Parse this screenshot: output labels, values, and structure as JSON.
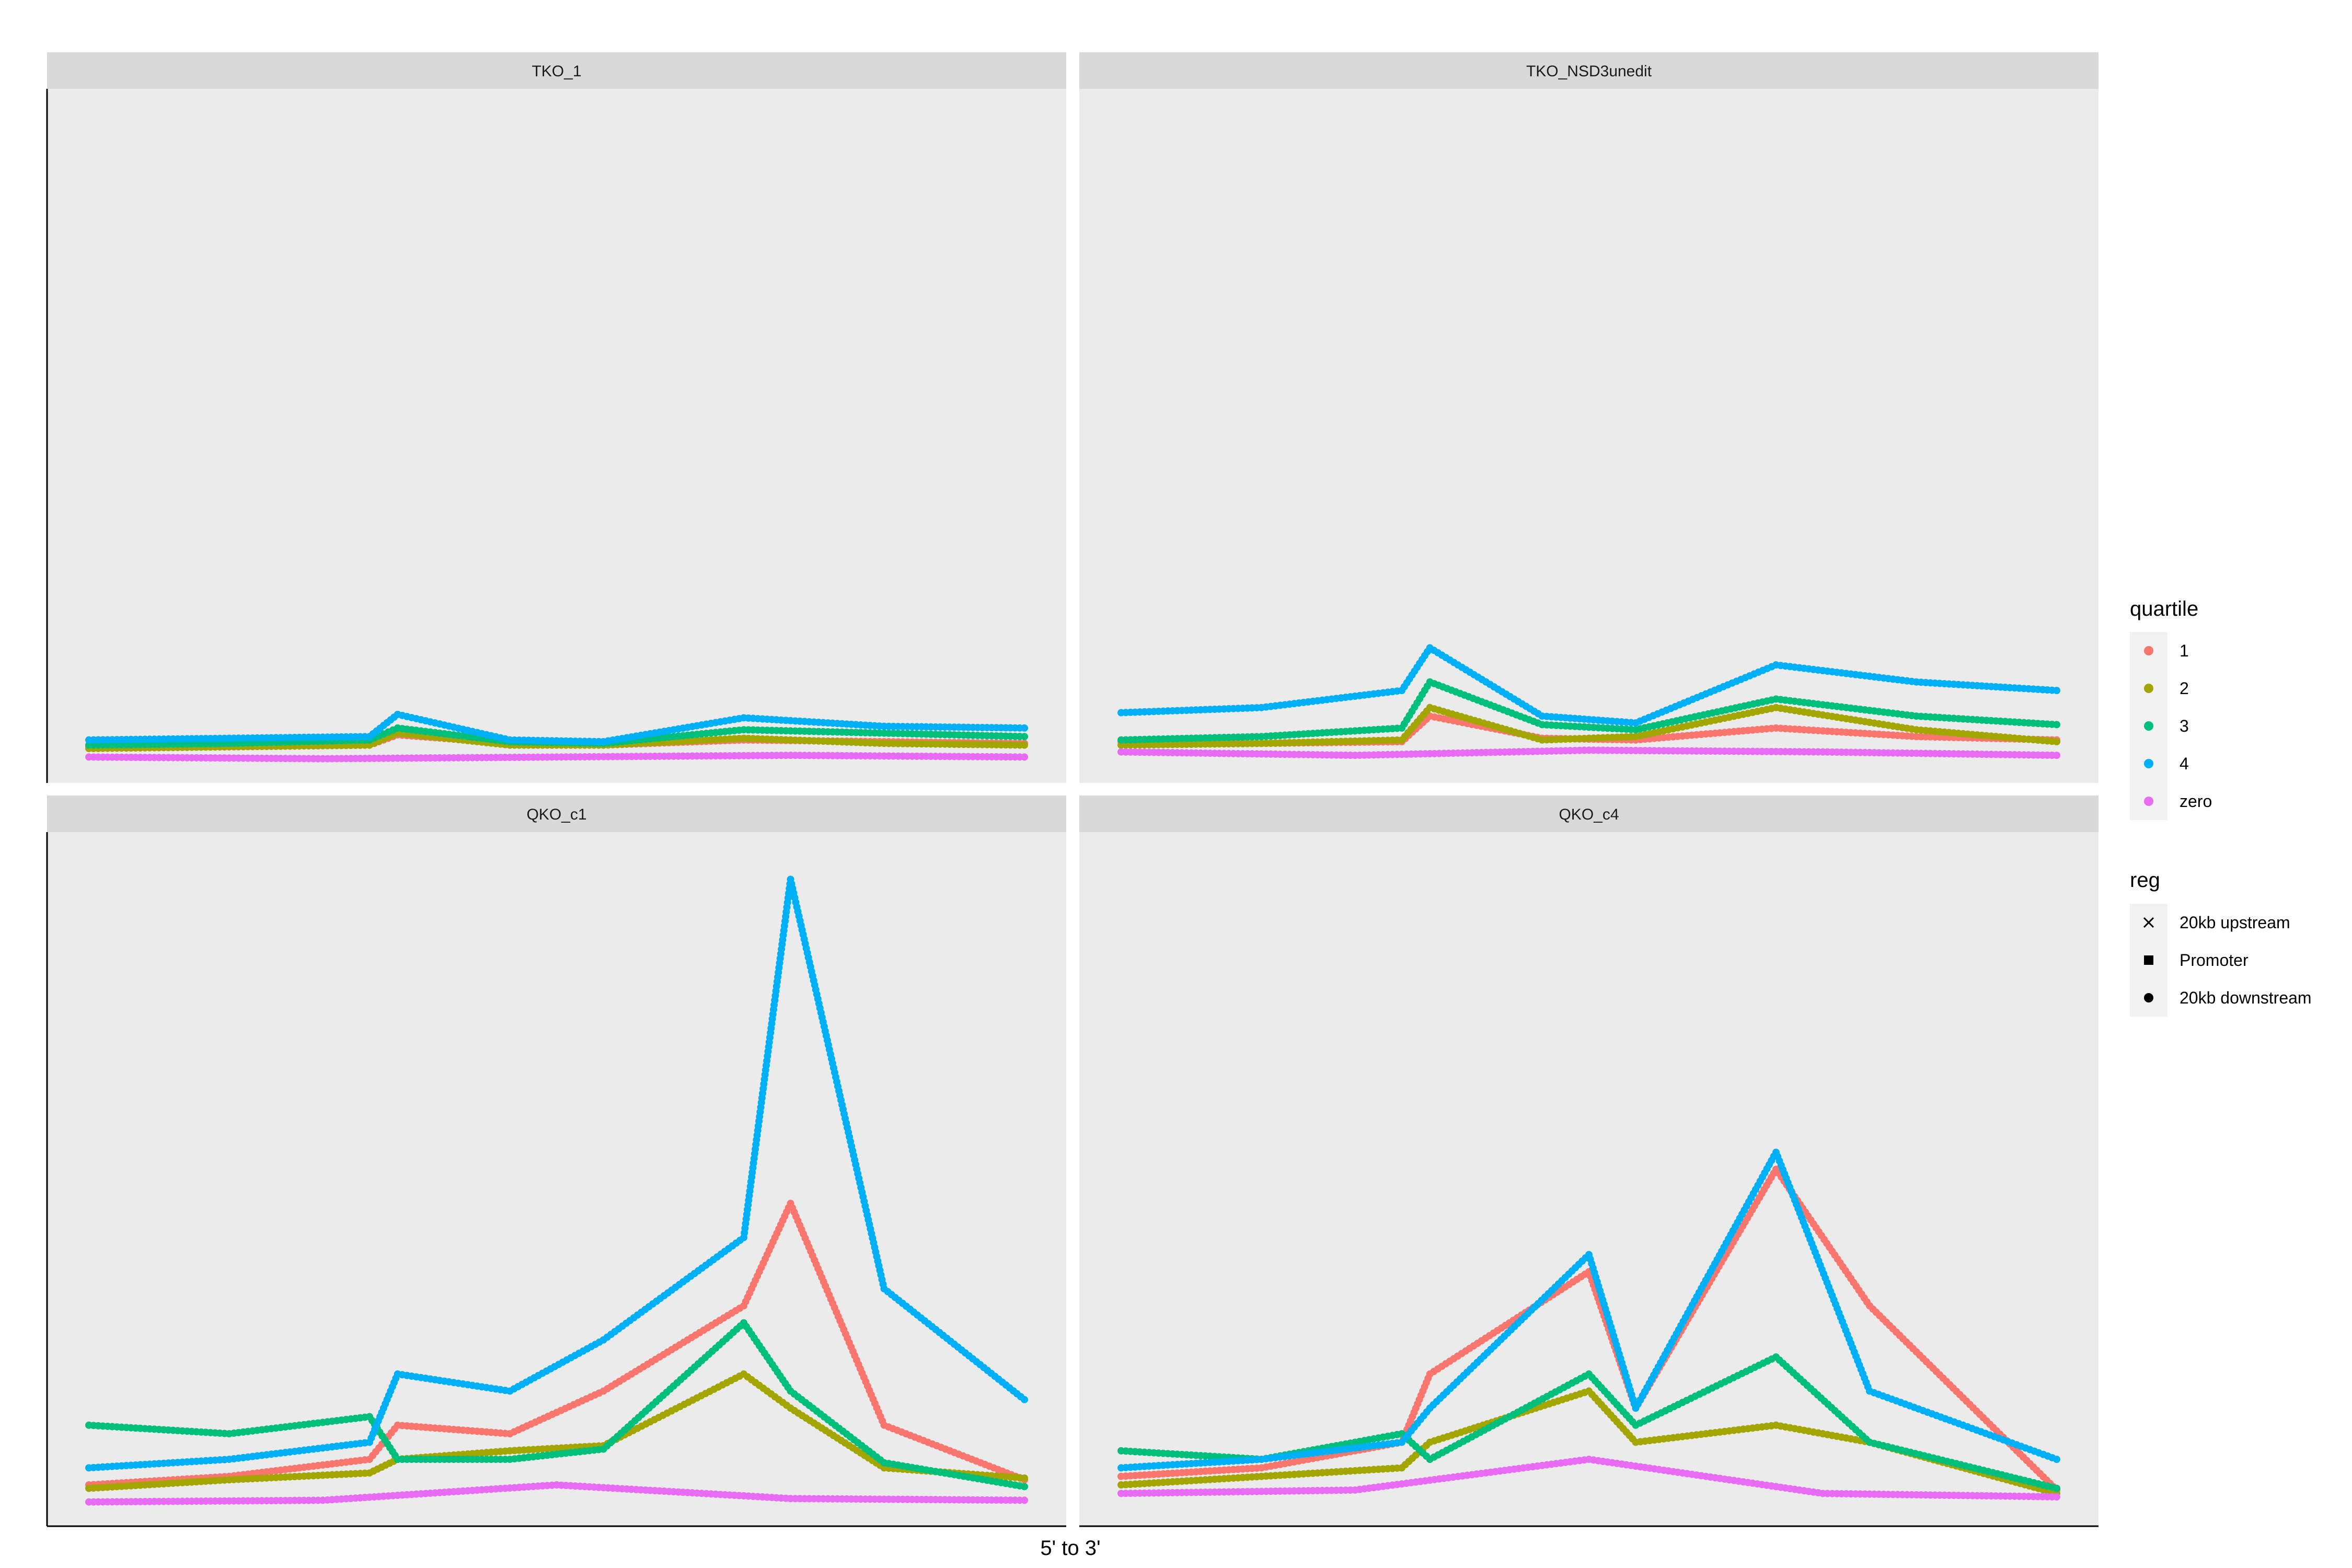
{
  "chart_data": {
    "type": "scatter",
    "xlabel": "5' to 3'",
    "ylabel": "",
    "x_ticks_shown": false,
    "y_ticks_shown": false,
    "grid": false,
    "shared_scales": true,
    "legend_position": "right",
    "x_regions": [
      "20kb upstream",
      "Promoter",
      "20kb downstream"
    ],
    "facets": [
      {
        "name": "TKO_1",
        "series": [
          {
            "name": "1",
            "shape": "Promoter",
            "values": [
              [
                0,
                1.2
              ],
              [
                0.15,
                1.2
              ],
              [
                0.3,
                1.3
              ],
              [
                0.33,
                1.9
              ],
              [
                0.45,
                1.4
              ],
              [
                0.55,
                1.3
              ],
              [
                0.7,
                1.6
              ],
              [
                0.85,
                1.5
              ],
              [
                1,
                1.4
              ]
            ]
          },
          {
            "name": "2",
            "shape": "Promoter",
            "values": [
              [
                0,
                1.1
              ],
              [
                0.15,
                1.2
              ],
              [
                0.3,
                1.3
              ],
              [
                0.33,
                2.0
              ],
              [
                0.45,
                1.3
              ],
              [
                0.55,
                1.3
              ],
              [
                0.7,
                1.7
              ],
              [
                0.85,
                1.4
              ],
              [
                1,
                1.3
              ]
            ]
          },
          {
            "name": "3",
            "shape": "Promoter",
            "values": [
              [
                0,
                1.3
              ],
              [
                0.15,
                1.4
              ],
              [
                0.3,
                1.6
              ],
              [
                0.33,
                2.3
              ],
              [
                0.45,
                1.5
              ],
              [
                0.55,
                1.4
              ],
              [
                0.7,
                2.2
              ],
              [
                0.85,
                2.0
              ],
              [
                1,
                1.8
              ]
            ]
          },
          {
            "name": "4",
            "shape": "Promoter",
            "values": [
              [
                0,
                1.6
              ],
              [
                0.15,
                1.7
              ],
              [
                0.3,
                1.8
              ],
              [
                0.33,
                3.1
              ],
              [
                0.45,
                1.6
              ],
              [
                0.55,
                1.5
              ],
              [
                0.7,
                2.9
              ],
              [
                0.85,
                2.4
              ],
              [
                1,
                2.3
              ]
            ]
          },
          {
            "name": "zero",
            "shape": "Promoter",
            "values": [
              [
                0,
                0.6
              ],
              [
                0.25,
                0.5
              ],
              [
                0.5,
                0.6
              ],
              [
                0.75,
                0.7
              ],
              [
                1,
                0.6
              ]
            ]
          }
        ]
      },
      {
        "name": "TKO_NSD3unedit",
        "series": [
          {
            "name": "1",
            "shape": "Promoter",
            "values": [
              [
                0,
                1.5
              ],
              [
                0.15,
                1.4
              ],
              [
                0.3,
                1.5
              ],
              [
                0.33,
                3.0
              ],
              [
                0.45,
                1.7
              ],
              [
                0.55,
                1.6
              ],
              [
                0.7,
                2.3
              ],
              [
                0.85,
                1.8
              ],
              [
                1,
                1.6
              ]
            ]
          },
          {
            "name": "2",
            "shape": "Promoter",
            "values": [
              [
                0,
                1.3
              ],
              [
                0.15,
                1.4
              ],
              [
                0.3,
                1.6
              ],
              [
                0.33,
                3.5
              ],
              [
                0.45,
                1.6
              ],
              [
                0.55,
                1.8
              ],
              [
                0.7,
                3.5
              ],
              [
                0.85,
                2.2
              ],
              [
                1,
                1.5
              ]
            ]
          },
          {
            "name": "3",
            "shape": "Promoter",
            "values": [
              [
                0,
                1.6
              ],
              [
                0.15,
                1.8
              ],
              [
                0.3,
                2.3
              ],
              [
                0.33,
                5.0
              ],
              [
                0.45,
                2.5
              ],
              [
                0.55,
                2.2
              ],
              [
                0.7,
                4.0
              ],
              [
                0.85,
                3.0
              ],
              [
                1,
                2.5
              ]
            ]
          },
          {
            "name": "4",
            "shape": "Promoter",
            "values": [
              [
                0,
                3.2
              ],
              [
                0.15,
                3.5
              ],
              [
                0.3,
                4.5
              ],
              [
                0.33,
                7.0
              ],
              [
                0.45,
                3.0
              ],
              [
                0.55,
                2.6
              ],
              [
                0.7,
                6.0
              ],
              [
                0.85,
                5.0
              ],
              [
                1,
                4.5
              ]
            ]
          },
          {
            "name": "zero",
            "shape": "Promoter",
            "values": [
              [
                0,
                0.9
              ],
              [
                0.25,
                0.7
              ],
              [
                0.5,
                1.0
              ],
              [
                0.75,
                0.9
              ],
              [
                1,
                0.7
              ]
            ]
          }
        ]
      },
      {
        "name": "QKO_c1",
        "series": [
          {
            "name": "1",
            "shape": "Promoter",
            "values": [
              [
                0,
                1.5
              ],
              [
                0.15,
                2.0
              ],
              [
                0.3,
                3.0
              ],
              [
                0.33,
                5.0
              ],
              [
                0.45,
                4.5
              ],
              [
                0.55,
                7.0
              ],
              [
                0.7,
                12.0
              ],
              [
                0.75,
                18.0
              ],
              [
                0.85,
                5.0
              ],
              [
                1,
                1.8
              ]
            ]
          },
          {
            "name": "2",
            "shape": "Promoter",
            "values": [
              [
                0,
                1.3
              ],
              [
                0.15,
                1.8
              ],
              [
                0.3,
                2.2
              ],
              [
                0.33,
                3.0
              ],
              [
                0.45,
                3.5
              ],
              [
                0.55,
                3.8
              ],
              [
                0.7,
                8.0
              ],
              [
                0.75,
                6.0
              ],
              [
                0.85,
                2.5
              ],
              [
                1,
                1.9
              ]
            ]
          },
          {
            "name": "3",
            "shape": "Promoter",
            "values": [
              [
                0,
                5.0
              ],
              [
                0.15,
                4.5
              ],
              [
                0.3,
                5.5
              ],
              [
                0.33,
                3.0
              ],
              [
                0.45,
                3.0
              ],
              [
                0.55,
                3.6
              ],
              [
                0.7,
                11.0
              ],
              [
                0.75,
                7.0
              ],
              [
                0.85,
                2.8
              ],
              [
                1,
                1.4
              ]
            ]
          },
          {
            "name": "4",
            "shape": "Promoter",
            "values": [
              [
                0,
                2.5
              ],
              [
                0.15,
                3.0
              ],
              [
                0.3,
                4.0
              ],
              [
                0.33,
                8.0
              ],
              [
                0.45,
                7.0
              ],
              [
                0.55,
                10.0
              ],
              [
                0.7,
                16.0
              ],
              [
                0.75,
                37.0
              ],
              [
                0.85,
                13.0
              ],
              [
                1,
                6.5
              ]
            ]
          },
          {
            "name": "zero",
            "shape": "Promoter",
            "values": [
              [
                0,
                0.5
              ],
              [
                0.25,
                0.6
              ],
              [
                0.5,
                1.5
              ],
              [
                0.75,
                0.7
              ],
              [
                1,
                0.6
              ]
            ]
          }
        ]
      },
      {
        "name": "QKO_c4",
        "series": [
          {
            "name": "1",
            "shape": "Promoter",
            "values": [
              [
                0,
                2.0
              ],
              [
                0.15,
                2.5
              ],
              [
                0.3,
                4.0
              ],
              [
                0.33,
                8.0
              ],
              [
                0.5,
                14.0
              ],
              [
                0.55,
                6.0
              ],
              [
                0.7,
                20.0
              ],
              [
                0.8,
                12.0
              ],
              [
                1,
                1.2
              ]
            ]
          },
          {
            "name": "2",
            "shape": "Promoter",
            "values": [
              [
                0,
                1.5
              ],
              [
                0.15,
                2.0
              ],
              [
                0.3,
                2.5
              ],
              [
                0.33,
                4.0
              ],
              [
                0.5,
                7.0
              ],
              [
                0.55,
                4.0
              ],
              [
                0.7,
                5.0
              ],
              [
                0.8,
                4.0
              ],
              [
                1,
                1.0
              ]
            ]
          },
          {
            "name": "3",
            "shape": "Promoter",
            "values": [
              [
                0,
                3.5
              ],
              [
                0.15,
                3.0
              ],
              [
                0.3,
                4.5
              ],
              [
                0.33,
                3.0
              ],
              [
                0.5,
                8.0
              ],
              [
                0.55,
                5.0
              ],
              [
                0.7,
                9.0
              ],
              [
                0.8,
                4.0
              ],
              [
                1,
                1.3
              ]
            ]
          },
          {
            "name": "4",
            "shape": "Promoter",
            "values": [
              [
                0,
                2.5
              ],
              [
                0.15,
                3.0
              ],
              [
                0.3,
                4.0
              ],
              [
                0.33,
                6.0
              ],
              [
                0.5,
                15.0
              ],
              [
                0.55,
                6.0
              ],
              [
                0.7,
                21.0
              ],
              [
                0.8,
                7.0
              ],
              [
                1,
                3.0
              ]
            ]
          },
          {
            "name": "zero",
            "shape": "Promoter",
            "values": [
              [
                0,
                1.0
              ],
              [
                0.25,
                1.2
              ],
              [
                0.5,
                3.0
              ],
              [
                0.75,
                1.0
              ],
              [
                1,
                0.8
              ]
            ]
          }
        ]
      }
    ]
  },
  "legend": {
    "quartile": {
      "title": "quartile",
      "items": [
        {
          "label": "1",
          "color": "#F8766D"
        },
        {
          "label": "2",
          "color": "#A3A500"
        },
        {
          "label": "3",
          "color": "#00BF7D"
        },
        {
          "label": "4",
          "color": "#00B0F6"
        },
        {
          "label": "zero",
          "color": "#E76BF3"
        }
      ]
    },
    "reg": {
      "title": "reg",
      "items": [
        {
          "label": "20kb upstream",
          "shape": "cross-icon"
        },
        {
          "label": "Promoter",
          "shape": "square-icon"
        },
        {
          "label": "20kb downstream",
          "shape": "circle-icon"
        }
      ]
    }
  },
  "colors": {
    "panel_background": "#EBEBEB",
    "strip_background": "#D9D9D9"
  }
}
